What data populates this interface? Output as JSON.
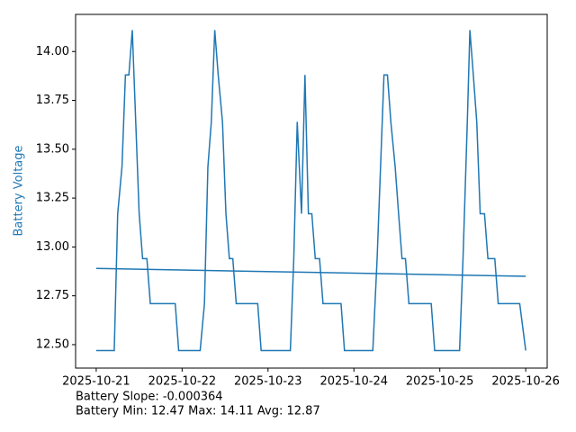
{
  "chart_data": {
    "type": "line",
    "ylabel": "Battery Voltage",
    "annotations": [
      "Battery Slope: -0.000364",
      "Battery Min: 12.47 Max: 14.11 Avg: 12.87"
    ],
    "series": [
      {
        "color": "#1f77b4",
        "x": [
          0,
          0.21,
          0.25,
          0.3,
          0.34,
          0.38,
          0.42,
          0.46,
          0.5,
          0.54,
          0.59,
          0.63,
          0.92,
          0.96,
          1.21,
          1.26,
          1.3,
          1.34,
          1.38,
          1.42,
          1.47,
          1.51,
          1.55,
          1.59,
          1.63,
          1.88,
          1.92,
          2.26,
          2.3,
          2.34,
          2.39,
          2.43,
          2.47,
          2.51,
          2.55,
          2.6,
          2.64,
          2.85,
          2.89,
          3.22,
          3.27,
          3.31,
          3.35,
          3.39,
          3.43,
          3.48,
          3.52,
          3.56,
          3.6,
          3.64,
          3.9,
          3.94,
          4.23,
          4.27,
          4.32,
          4.35,
          4.39,
          4.43,
          4.47,
          4.52,
          4.56,
          4.64,
          4.68,
          4.93,
          5.0
        ],
        "values": [
          12.47,
          12.47,
          13.17,
          13.41,
          13.88,
          13.88,
          14.11,
          13.64,
          13.17,
          12.94,
          12.94,
          12.71,
          12.71,
          12.47,
          12.47,
          12.71,
          13.41,
          13.64,
          14.11,
          13.88,
          13.64,
          13.17,
          12.94,
          12.94,
          12.71,
          12.71,
          12.47,
          12.47,
          12.94,
          13.64,
          13.17,
          13.88,
          13.17,
          13.17,
          12.94,
          12.94,
          12.71,
          12.71,
          12.47,
          12.47,
          12.94,
          13.41,
          13.88,
          13.88,
          13.64,
          13.41,
          13.17,
          12.94,
          12.94,
          12.71,
          12.71,
          12.47,
          12.47,
          12.94,
          13.64,
          14.11,
          13.88,
          13.64,
          13.17,
          13.17,
          12.94,
          12.94,
          12.71,
          12.71,
          12.47
        ]
      },
      {
        "color": "#1f77b4",
        "x": [
          0,
          5
        ],
        "values": [
          12.89,
          12.85
        ]
      }
    ],
    "xlim": [
      -0.24,
      5.25
    ],
    "ylim": [
      12.38,
      14.19
    ],
    "xticks": [
      {
        "value": 0,
        "label": "2025-10-21"
      },
      {
        "value": 1,
        "label": "2025-10-22"
      },
      {
        "value": 2,
        "label": "2025-10-23"
      },
      {
        "value": 3,
        "label": "2025-10-24"
      },
      {
        "value": 4,
        "label": "2025-10-25"
      },
      {
        "value": 5,
        "label": "2025-10-26"
      }
    ],
    "yticks": [
      {
        "value": 12.5,
        "label": "12.50"
      },
      12.75,
      {
        "value": 13,
        "label": "13.00"
      },
      13.25,
      {
        "value": 13.5,
        "label": "13.50"
      },
      13.75,
      {
        "value": 14,
        "label": "14.00"
      }
    ]
  }
}
